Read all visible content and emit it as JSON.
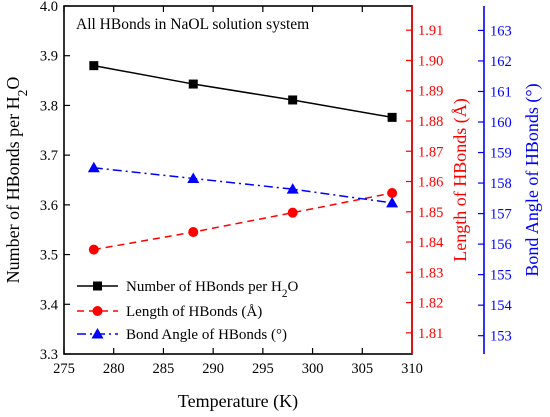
{
  "colors": {
    "left_axis": "#000000",
    "right_axis": "#ff0000",
    "far_right_axis": "#0000ff",
    "series_number": "#000000",
    "series_length": "#ff0000",
    "series_angle": "#0000ff"
  },
  "chart_data": {
    "type": "line",
    "title": "All HBonds in NaOL solution system",
    "x": [
      278,
      288,
      298,
      308
    ],
    "xlabel": "Temperature (K)",
    "xlim": [
      275,
      310
    ],
    "xticks": [
      "275",
      "280",
      "285",
      "290",
      "295",
      "300",
      "305",
      "310"
    ],
    "y_axes": [
      {
        "id": "left",
        "label": "Number of HBonds per H₂O",
        "lim": [
          3.3,
          4.0
        ],
        "ticks": [
          "3.3",
          "3.4",
          "3.5",
          "3.6",
          "3.7",
          "3.8",
          "3.9",
          "4.0"
        ],
        "color": "#000000"
      },
      {
        "id": "right",
        "label": "Length of HBonds (Å)",
        "lim": [
          1.803,
          1.918
        ],
        "ticks": [
          "1.81",
          "1.82",
          "1.83",
          "1.84",
          "1.85",
          "1.86",
          "1.87",
          "1.88",
          "1.89",
          "1.90",
          "1.91"
        ],
        "color": "#ff0000"
      },
      {
        "id": "far_right",
        "label": "Bond Angle of HBonds (°)",
        "lim": [
          152.4,
          163.8
        ],
        "ticks": [
          "153",
          "154",
          "155",
          "156",
          "157",
          "158",
          "159",
          "160",
          "161",
          "162",
          "163"
        ],
        "color": "#0000ff"
      }
    ],
    "series": [
      {
        "name": "Number of HBonds per H₂O",
        "axis": "left",
        "values": [
          3.88,
          3.843,
          3.811,
          3.776
        ],
        "color": "#000000",
        "marker": "square",
        "line": "solid"
      },
      {
        "name": "Length of HBonds (Å)",
        "axis": "right",
        "values": [
          1.8375,
          1.8433,
          1.8497,
          1.8562
        ],
        "color": "#ff0000",
        "marker": "circle",
        "line": "dashed"
      },
      {
        "name": "Bond Angle of HBonds (°)",
        "axis": "far_right",
        "values": [
          158.5,
          158.15,
          157.8,
          157.35
        ],
        "color": "#0000ff",
        "marker": "triangle",
        "line": "dashdot"
      }
    ],
    "legend_position": "bottom-left",
    "grid": false
  }
}
